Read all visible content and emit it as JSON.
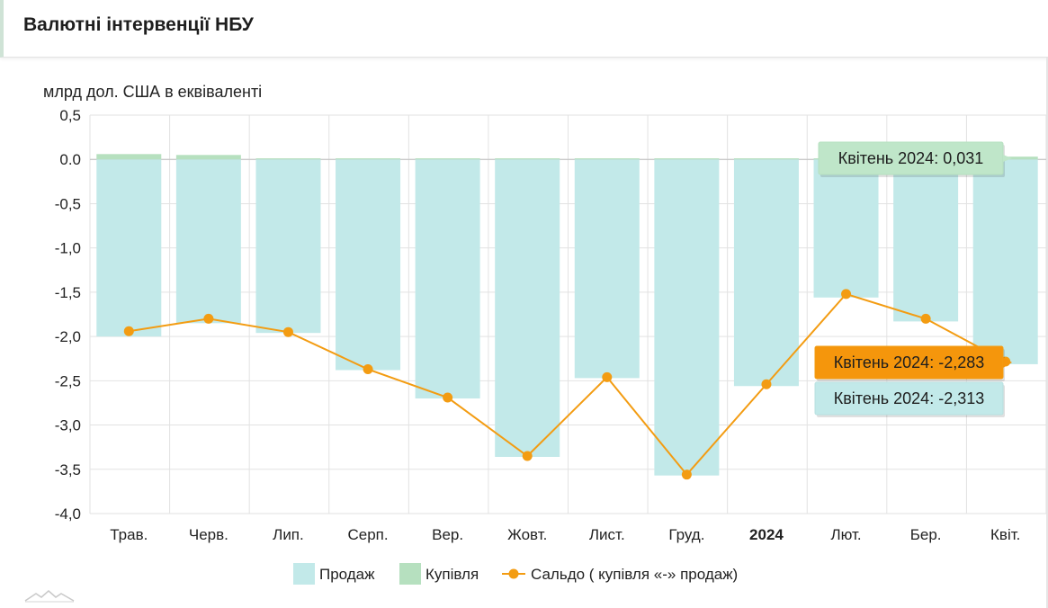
{
  "header": {
    "title": "Валютні інтервенції НБУ"
  },
  "chart_data": {
    "type": "bar",
    "ylabel": "млрд дол. США в еквіваленті",
    "ylim": [
      -4.0,
      0.5
    ],
    "yticks": [
      0.5,
      0.0,
      -0.5,
      -1.0,
      -1.5,
      -2.0,
      -2.5,
      -3.0,
      -3.5,
      -4.0
    ],
    "ytick_labels": [
      "0,5",
      "0.0",
      "-0,5",
      "-1,0",
      "-1,5",
      "-2,0",
      "-2,5",
      "-3,0",
      "-3,5",
      "-4,0"
    ],
    "categories": [
      "Трав.",
      "Черв.",
      "Лип.",
      "Серп.",
      "Вер.",
      "Жовт.",
      "Лист.",
      "Груд.",
      "2024",
      "Лют.",
      "Бер.",
      "Квіт."
    ],
    "bold_categories": [
      "2024"
    ],
    "grid": true,
    "legend_position": "bottom",
    "series": [
      {
        "name": "Продаж",
        "kind": "bar",
        "color": "#c2e9e9",
        "values": [
          -2.0,
          -1.85,
          -1.96,
          -2.38,
          -2.7,
          -3.36,
          -2.47,
          -3.57,
          -2.56,
          -1.56,
          -1.83,
          -2.313
        ]
      },
      {
        "name": "Купівля",
        "kind": "bar",
        "color": "#b6e0bf",
        "values": [
          0.06,
          0.05,
          0.01,
          0.005,
          0.005,
          0.01,
          0.005,
          0.005,
          0.01,
          0.005,
          0.005,
          0.031
        ]
      },
      {
        "name": "Сальдо ( купівля «-» продаж)",
        "kind": "line",
        "color": "#f39c12",
        "values": [
          -1.94,
          -1.8,
          -1.95,
          -2.37,
          -2.69,
          -3.35,
          -2.46,
          -3.56,
          -2.54,
          -1.52,
          -1.8,
          -2.283
        ]
      }
    ],
    "tooltips": [
      {
        "series": 1,
        "label": "Квітень 2024: 0,031",
        "bg": "#bfe6c9",
        "fg": "#1e1e1e",
        "border": "#b6e0bf"
      },
      {
        "series": 2,
        "label": "Квітень 2024: -2,283",
        "bg": "#f5960c",
        "fg": "#1e1e1e",
        "border": "#f39c12"
      },
      {
        "series": 0,
        "label": "Квітень 2024: -2,313",
        "bg": "#c2e9e9",
        "fg": "#1e1e1e",
        "border": "#b8e0e0"
      }
    ]
  }
}
